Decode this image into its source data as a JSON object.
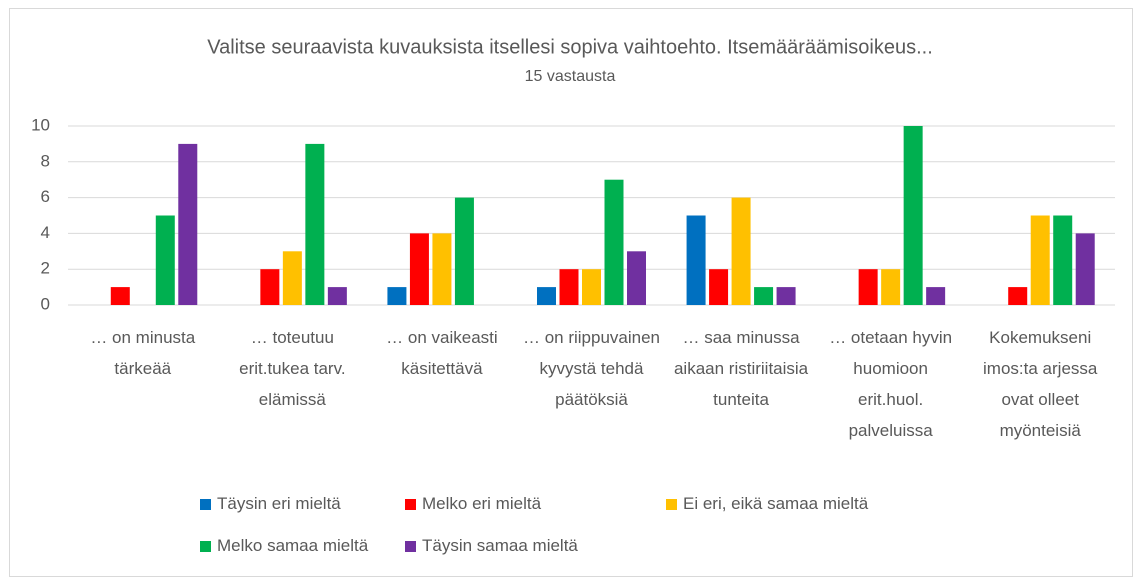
{
  "chart_data": {
    "type": "bar",
    "title": "Valitse seuraavista kuvauksista itsellesi sopiva vaihtoehto. Itsemääräämisoikeus...",
    "subtitle": "15 vastausta",
    "categories": [
      "… on minusta tärkeää",
      "… toteutuu erit.tukea tarv. elämissä",
      "… on vaikeasti käsitettävä",
      "… on riippuvainen kyvystä tehdä päätöksiä",
      "… saa minussa aikaan ristiriitaisia tunteita",
      "… otetaan hyvin huomioon erit.huol. palveluissa",
      "Kokemukseni imos:ta arjessa ovat olleet myönteisiä"
    ],
    "series": [
      {
        "name": "Täysin eri mieltä",
        "color": "#0070c0",
        "values": [
          0,
          0,
          1,
          1,
          5,
          0,
          0
        ]
      },
      {
        "name": "Melko eri mieltä",
        "color": "#ff0000",
        "values": [
          1,
          2,
          4,
          2,
          2,
          2,
          1
        ]
      },
      {
        "name": "Ei eri, eikä samaa mieltä",
        "color": "#ffc000",
        "values": [
          0,
          3,
          4,
          2,
          6,
          2,
          5
        ]
      },
      {
        "name": "Melko samaa mieltä",
        "color": "#00b050",
        "values": [
          5,
          9,
          6,
          7,
          1,
          10,
          5
        ]
      },
      {
        "name": "Täysin samaa mieltä",
        "color": "#7030a0",
        "values": [
          9,
          1,
          0,
          3,
          1,
          1,
          4
        ]
      }
    ],
    "ylim": [
      0,
      10
    ],
    "yticks": [
      0,
      2,
      4,
      6,
      8,
      10
    ],
    "grid": true,
    "legend": "bottom"
  }
}
